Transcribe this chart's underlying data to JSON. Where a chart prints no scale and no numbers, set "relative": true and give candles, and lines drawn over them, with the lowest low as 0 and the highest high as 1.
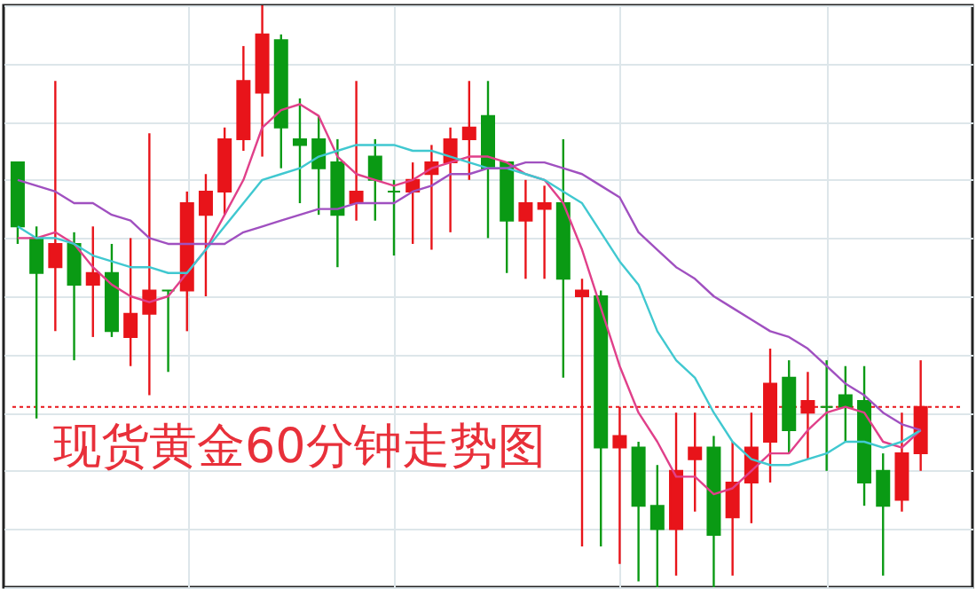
{
  "chart_data": {
    "type": "candlestick",
    "title": "现货黄金60分钟走势图",
    "relative": true,
    "grid": true,
    "categories": [
      null,
      null,
      null,
      null,
      null,
      null,
      null,
      null,
      null,
      null,
      null,
      null,
      null,
      null,
      null,
      null,
      null,
      null,
      null,
      null,
      null,
      null,
      null,
      null,
      null,
      null,
      null,
      null,
      null,
      null,
      null,
      null,
      null,
      null,
      null,
      null,
      null,
      null,
      null,
      null,
      null,
      null,
      null,
      null,
      null,
      null,
      null,
      null,
      null
    ],
    "colors": [
      "#0a9a14",
      "#0a9a14",
      "#e8141a",
      "#0a9a14",
      "#e8141a",
      "#0a9a14",
      "#e8141a",
      "#e8141a",
      "#0a9a14",
      "#e8141a",
      "#e8141a",
      "#e8141a",
      "#e8141a",
      "#e8141a",
      "#0a9a14",
      "#0a9a14",
      "#0a9a14",
      "#0a9a14",
      "#e8141a",
      "#0a9a14",
      "#0a9a14",
      "#e8141a",
      "#e8141a",
      "#e8141a",
      "#e8141a",
      "#0a9a14",
      "#0a9a14",
      "#e8141a",
      "#e8141a",
      "#0a9a14",
      "#e8141a",
      "#0a9a14",
      "#e8141a",
      "#0a9a14",
      "#0a9a14",
      "#e8141a",
      "#e8141a",
      "#0a9a14",
      "#e8141a",
      "#e8141a",
      "#e8141a",
      "#0a9a14",
      "#e8141a",
      "#0a9a14",
      "#0a9a14",
      "#0a9a14",
      "#0a9a14",
      "#e8141a",
      "#e8141a"
    ],
    "ohlc": [
      [
        0.73,
        0.73,
        0.59,
        0.62
      ],
      [
        0.6,
        0.62,
        0.29,
        0.54
      ],
      [
        0.55,
        0.87,
        0.44,
        0.59
      ],
      [
        0.59,
        0.61,
        0.39,
        0.52
      ],
      [
        0.52,
        0.62,
        0.43,
        0.54
      ],
      [
        0.54,
        0.59,
        0.43,
        0.44
      ],
      [
        0.43,
        0.6,
        0.38,
        0.47
      ],
      [
        0.47,
        0.78,
        0.33,
        0.51
      ],
      [
        0.51,
        0.51,
        0.37,
        0.51
      ],
      [
        0.51,
        0.68,
        0.44,
        0.66
      ],
      [
        0.64,
        0.71,
        0.5,
        0.68
      ],
      [
        0.68,
        0.79,
        0.64,
        0.77
      ],
      [
        0.77,
        0.93,
        0.75,
        0.87
      ],
      [
        0.85,
        1,
        0.74,
        0.95
      ],
      [
        0.94,
        0.95,
        0.72,
        0.79
      ],
      [
        0.77,
        0.84,
        0.66,
        0.76
      ],
      [
        0.77,
        0.81,
        0.64,
        0.72
      ],
      [
        0.73,
        0.77,
        0.55,
        0.64
      ],
      [
        0.66,
        0.87,
        0.63,
        0.68
      ],
      [
        0.74,
        0.77,
        0.63,
        0.7
      ],
      [
        0.68,
        0.7,
        0.57,
        0.68
      ],
      [
        0.68,
        0.73,
        0.59,
        0.7
      ],
      [
        0.71,
        0.76,
        0.58,
        0.73
      ],
      [
        0.73,
        0.79,
        0.61,
        0.77
      ],
      [
        0.77,
        0.87,
        0.7,
        0.79
      ],
      [
        0.81,
        0.87,
        0.6,
        0.72
      ],
      [
        0.73,
        0.73,
        0.54,
        0.63
      ],
      [
        0.63,
        0.7,
        0.53,
        0.66
      ],
      [
        0.65,
        0.69,
        0.53,
        0.66
      ],
      [
        0.66,
        0.77,
        0.36,
        0.53
      ],
      [
        0.5,
        0.53,
        0.07,
        0.51
      ],
      [
        0.5,
        0.51,
        0.07,
        0.24
      ],
      [
        0.24,
        0.31,
        0.04,
        0.26
      ],
      [
        0.24,
        0.25,
        0.01,
        0.14
      ],
      [
        0.14,
        0.21,
        0,
        0.1
      ],
      [
        0.1,
        0.3,
        0.02,
        0.2
      ],
      [
        0.22,
        0.3,
        0.13,
        0.24
      ],
      [
        0.24,
        0.26,
        0,
        0.09
      ],
      [
        0.12,
        0.25,
        0.02,
        0.18
      ],
      [
        0.18,
        0.3,
        0.11,
        0.24
      ],
      [
        0.25,
        0.41,
        0.18,
        0.35
      ],
      [
        0.36,
        0.39,
        0.23,
        0.27
      ],
      [
        0.3,
        0.37,
        0.22,
        0.32
      ],
      [
        0.31,
        0.39,
        0.2,
        0.31
      ],
      [
        0.33,
        0.38,
        0.25,
        0.31
      ],
      [
        0.32,
        0.38,
        0.14,
        0.18
      ],
      [
        0.2,
        0.23,
        0.02,
        0.14
      ],
      [
        0.15,
        0.3,
        0.13,
        0.23
      ],
      [
        0.23,
        0.39,
        0.2,
        0.31
      ]
    ],
    "series": [
      {
        "type": "line",
        "color": "#e0408a",
        "values": [
          0.6,
          0.6,
          0.61,
          0.59,
          0.55,
          0.52,
          0.5,
          0.49,
          0.5,
          0.54,
          0.58,
          0.64,
          0.7,
          0.79,
          0.82,
          0.83,
          0.81,
          0.74,
          0.71,
          0.7,
          0.69,
          0.7,
          0.72,
          0.73,
          0.74,
          0.74,
          0.73,
          0.71,
          0.7,
          0.66,
          0.58,
          0.48,
          0.38,
          0.3,
          0.25,
          0.19,
          0.19,
          0.16,
          0.17,
          0.2,
          0.23,
          0.23,
          0.27,
          0.3,
          0.31,
          0.3,
          0.25,
          0.24,
          0.27
        ]
      },
      {
        "type": "line",
        "color": "#40c8d0",
        "values": [
          0.62,
          0.6,
          0.6,
          0.59,
          0.57,
          0.56,
          0.55,
          0.55,
          0.54,
          0.54,
          0.58,
          0.62,
          0.66,
          0.7,
          0.71,
          0.72,
          0.74,
          0.75,
          0.76,
          0.76,
          0.76,
          0.75,
          0.75,
          0.74,
          0.73,
          0.72,
          0.72,
          0.71,
          0.7,
          0.68,
          0.66,
          0.61,
          0.56,
          0.52,
          0.44,
          0.39,
          0.36,
          0.3,
          0.25,
          0.22,
          0.21,
          0.21,
          0.22,
          0.23,
          0.25,
          0.25,
          0.24,
          0.25,
          0.27
        ]
      },
      {
        "type": "line",
        "color": "#a050c0",
        "values": [
          0.7,
          0.69,
          0.68,
          0.66,
          0.66,
          0.64,
          0.63,
          0.6,
          0.59,
          0.59,
          0.59,
          0.59,
          0.61,
          0.62,
          0.63,
          0.64,
          0.65,
          0.65,
          0.66,
          0.66,
          0.66,
          0.68,
          0.69,
          0.71,
          0.71,
          0.72,
          0.72,
          0.73,
          0.73,
          0.72,
          0.71,
          0.69,
          0.67,
          0.61,
          0.58,
          0.55,
          0.53,
          0.5,
          0.48,
          0.46,
          0.44,
          0.43,
          0.41,
          0.38,
          0.35,
          0.33,
          0.3,
          0.28,
          0.27
        ]
      }
    ],
    "ref_lines": [
      {
        "axis": "y",
        "value": 0.31,
        "color": "#e8141a",
        "line_style": "dotted"
      }
    ]
  }
}
